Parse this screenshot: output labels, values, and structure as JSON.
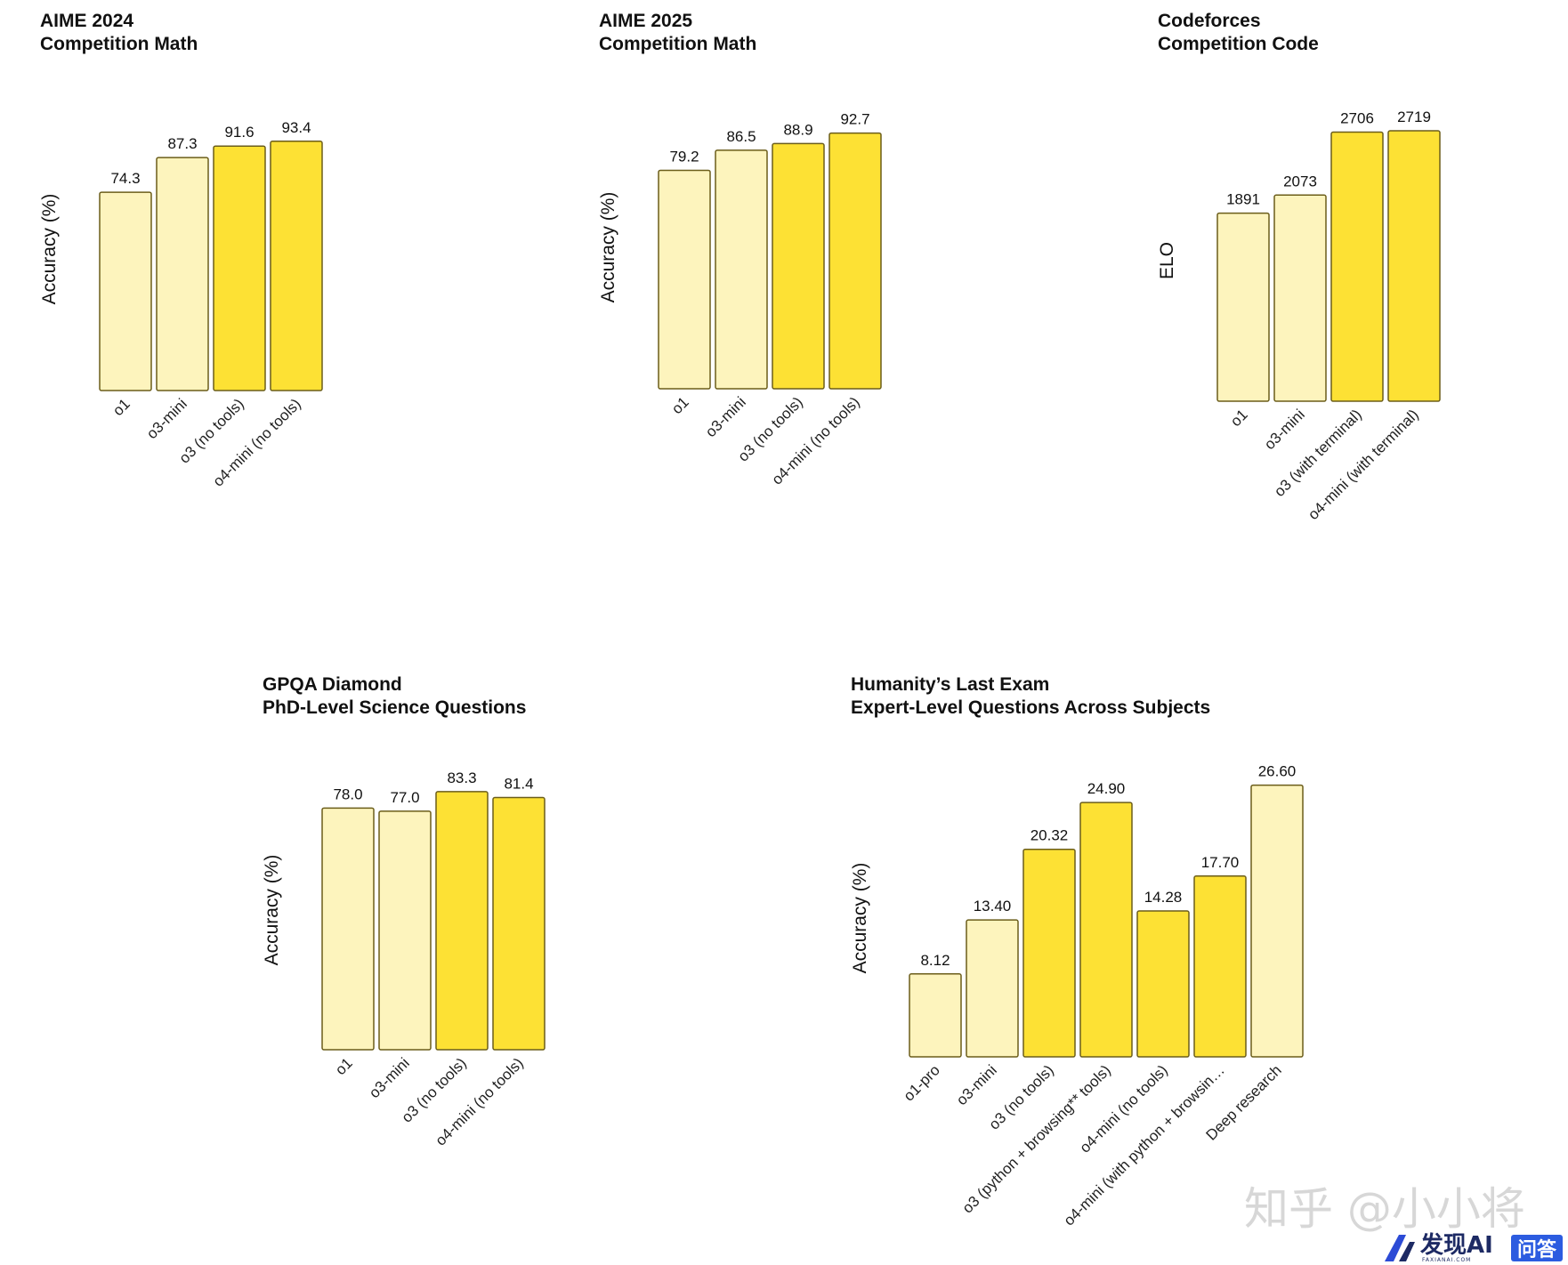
{
  "colors": {
    "light_bar": "#fdf4bd",
    "strong_bar": "#fde134",
    "bar_stroke": "#6b5d1a"
  },
  "chart_data": [
    {
      "type": "bar",
      "title": "AIME 2024",
      "subtitle": "Competition Math",
      "ylabel": "Accuracy (%)",
      "xlabel": "",
      "ylim": [
        0,
        100
      ],
      "grid": false,
      "categories": [
        "o1",
        "o3-mini",
        "o3 (no tools)",
        "o4-mini (no tools)"
      ],
      "values": [
        74.3,
        87.3,
        91.6,
        93.4
      ],
      "labels": [
        "74.3",
        "87.3",
        "91.6",
        "93.4"
      ],
      "highlight": [
        false,
        false,
        true,
        true
      ]
    },
    {
      "type": "bar",
      "title": "AIME 2025",
      "subtitle": "Competition Math",
      "ylabel": "Accuracy (%)",
      "xlabel": "",
      "ylim": [
        0,
        100
      ],
      "grid": false,
      "categories": [
        "o1",
        "o3-mini",
        "o3 (no tools)",
        "o4-mini (no tools)"
      ],
      "values": [
        79.2,
        86.5,
        88.9,
        92.7
      ],
      "labels": [
        "79.2",
        "86.5",
        "88.9",
        "92.7"
      ],
      "highlight": [
        false,
        false,
        true,
        true
      ]
    },
    {
      "type": "bar",
      "title": "Codeforces",
      "subtitle": "Competition Code",
      "ylabel": "ELO",
      "xlabel": "",
      "ylim": [
        0,
        2800
      ],
      "grid": false,
      "categories": [
        "o1",
        "o3-mini",
        "o3 (with terminal)",
        "o4-mini (with terminal)"
      ],
      "values": [
        1891,
        2073,
        2706,
        2719
      ],
      "labels": [
        "1891",
        "2073",
        "2706",
        "2719"
      ],
      "highlight": [
        false,
        false,
        true,
        true
      ]
    },
    {
      "type": "bar",
      "title": "GPQA Diamond",
      "subtitle": "PhD-Level Science Questions",
      "ylabel": "Accuracy (%)",
      "xlabel": "",
      "ylim": [
        0,
        85
      ],
      "grid": false,
      "categories": [
        "o1",
        "o3-mini",
        "o3 (no tools)",
        "o4-mini (no tools)"
      ],
      "values": [
        78.0,
        77.0,
        83.3,
        81.4
      ],
      "labels": [
        "78.0",
        "77.0",
        "83.3",
        "81.4"
      ],
      "highlight": [
        false,
        false,
        true,
        true
      ]
    },
    {
      "type": "bar",
      "title": "Humanity’s Last Exam",
      "subtitle": "Expert-Level Questions Across Subjects",
      "ylabel": "Accuracy (%)",
      "xlabel": "",
      "ylim": [
        0,
        27
      ],
      "grid": false,
      "categories": [
        "o1-pro",
        "o3-mini",
        "o3 (no tools)",
        "o3 (python + browsing** tools)",
        "o4-mini (no tools)",
        "o4-mini (with python + browsin…",
        "Deep research"
      ],
      "values": [
        8.12,
        13.4,
        20.32,
        24.9,
        14.28,
        17.7,
        26.6
      ],
      "labels": [
        "8.12",
        "13.40",
        "20.32",
        "24.90",
        "14.28",
        "17.70",
        "26.60"
      ],
      "highlight": [
        false,
        false,
        true,
        true,
        true,
        true,
        false
      ]
    }
  ],
  "watermark": {
    "text": "知乎 @小小将",
    "brand": "发现AI",
    "brand_sub": "FAXIANAI.COM",
    "qa": "问答"
  }
}
